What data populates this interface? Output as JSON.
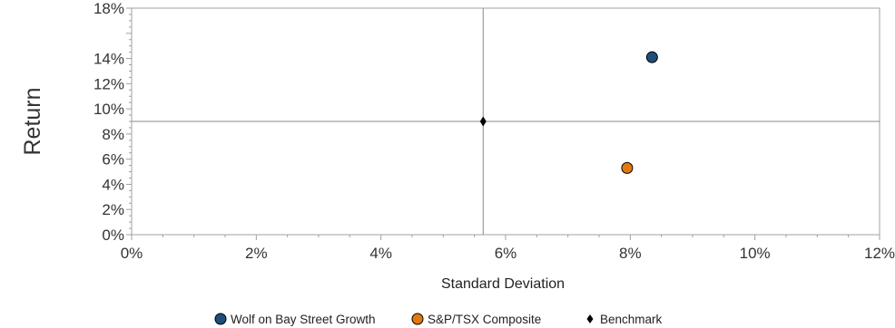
{
  "chart_data": {
    "type": "scatter",
    "title": "",
    "xlabel": "Standard Deviation",
    "ylabel": "Return",
    "xlim": [
      0,
      12
    ],
    "ylim": [
      0,
      18
    ],
    "x_ticks": [
      0,
      2,
      4,
      6,
      8,
      10,
      12
    ],
    "y_ticks": [
      0,
      2,
      4,
      6,
      8,
      10,
      12,
      14,
      18
    ],
    "x_tick_labels": [
      "0%",
      "2%",
      "4%",
      "6%",
      "8%",
      "10%",
      "12%"
    ],
    "y_tick_labels": [
      "0%",
      "2%",
      "4%",
      "6%",
      "8%",
      "10%",
      "12%",
      "14%",
      "18%"
    ],
    "grid": false,
    "legend_position": "bottom",
    "reference_lines": {
      "x": 5.64,
      "y": 9.0
    },
    "series": [
      {
        "name": "Wolf on Bay Street Growth",
        "marker": "circle",
        "color": "#1f4e79",
        "points": [
          {
            "x": 8.35,
            "y": 14.1
          }
        ]
      },
      {
        "name": "S&P/TSX Composite",
        "marker": "circle",
        "color": "#e07a10",
        "points": [
          {
            "x": 7.95,
            "y": 5.3
          }
        ]
      },
      {
        "name": "Benchmark",
        "marker": "diamond",
        "color": "#000000",
        "points": [
          {
            "x": 5.64,
            "y": 9.0
          }
        ]
      }
    ]
  }
}
